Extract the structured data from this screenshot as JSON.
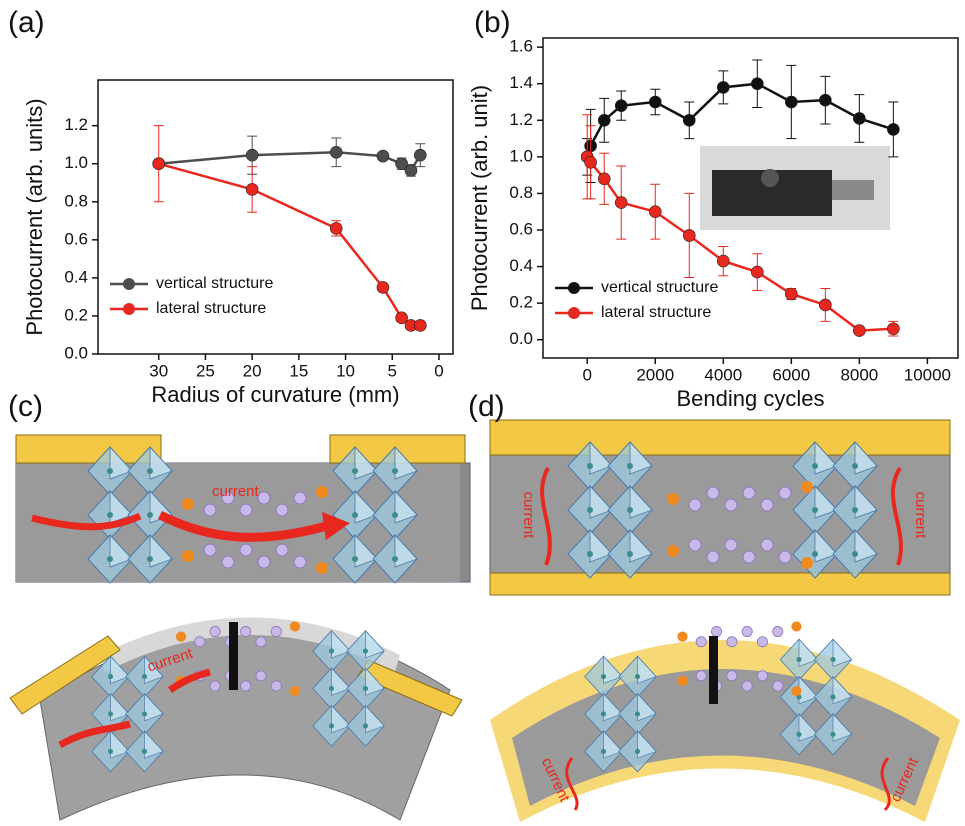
{
  "chart_data": [
    {
      "type": "line",
      "panel_label": "(a)",
      "x_label": "Radius of curvature (mm)",
      "y_label": "Photocurrent (arb. units)",
      "x": [
        30,
        20,
        11,
        6,
        4,
        3,
        2
      ],
      "series": [
        {
          "name": "vertical structure",
          "color": "#4d4d4d",
          "values": [
            1.0,
            1.045,
            1.06,
            1.04,
            1.0,
            0.965,
            1.045
          ],
          "errors": [
            0,
            0.1,
            0.075,
            0,
            0.03,
            0.03,
            0.06
          ]
        },
        {
          "name": "lateral structure",
          "color": "#e8281e",
          "values": [
            1.0,
            0.865,
            0.66,
            0.35,
            0.19,
            0.15,
            0.15
          ],
          "errors": [
            0.2,
            0.12,
            0.04,
            0,
            0.02,
            0.02,
            0.02
          ]
        }
      ],
      "xlim": [
        36.5,
        -1.5
      ],
      "xticks": [
        30,
        25,
        20,
        15,
        10,
        5,
        0
      ],
      "ylim": [
        0,
        1.44
      ],
      "yticks": [
        {
          "value": 0,
          "label": "0.0"
        },
        0.2,
        0.4,
        0.6,
        0.8,
        {
          "value": 1,
          "label": "1.0"
        },
        1.2
      ],
      "legend": "lower left"
    },
    {
      "type": "line",
      "panel_label": "(b)",
      "x_label": "Bending cycles",
      "y_label": "Photocurrent (arb. unit)",
      "x": [
        0,
        100,
        500,
        1000,
        2000,
        3000,
        4000,
        5000,
        6000,
        7000,
        8000,
        9000
      ],
      "series": [
        {
          "name": "vertical structure",
          "color": "#111111",
          "values": [
            1.0,
            1.06,
            1.2,
            1.28,
            1.3,
            1.2,
            1.38,
            1.4,
            1.3,
            1.31,
            1.21,
            1.15
          ],
          "errors": [
            0.1,
            0.2,
            0.12,
            0.08,
            0.07,
            0.1,
            0.09,
            0.13,
            0.2,
            0.13,
            0.13,
            0.15
          ]
        },
        {
          "name": "lateral structure",
          "color": "#e8281e",
          "values": [
            1.0,
            0.97,
            0.88,
            0.75,
            0.7,
            0.57,
            0.43,
            0.37,
            0.25,
            0.19,
            0.05,
            0.06
          ],
          "errors": [
            0.23,
            0.2,
            0.14,
            0.2,
            0.15,
            0.23,
            0.08,
            0.1,
            0.03,
            0.09,
            0.02,
            0.04
          ]
        }
      ],
      "xlim": [
        -1300,
        10900
      ],
      "xticks": [
        0,
        2000,
        4000,
        6000,
        8000,
        10000
      ],
      "ylim": [
        -0.1,
        1.65
      ],
      "yticks": [
        {
          "value": 0,
          "label": "0.0"
        },
        0.2,
        0.4,
        0.6,
        0.8,
        {
          "value": 1,
          "label": "1.0"
        },
        1.2,
        1.4,
        1.6
      ],
      "legend": "lower left"
    }
  ],
  "diagrams": [
    {
      "panel_label": "(c)",
      "labels": [
        "current",
        "current"
      ]
    },
    {
      "panel_label": "(d)",
      "labels": [
        "current",
        "current",
        "current",
        "current"
      ]
    }
  ]
}
